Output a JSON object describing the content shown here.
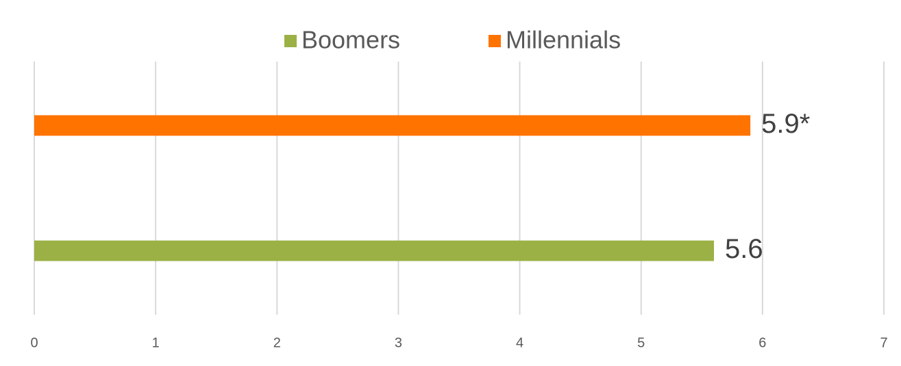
{
  "chart_data": {
    "type": "bar",
    "orientation": "horizontal",
    "categories": [
      null
    ],
    "series": [
      {
        "name": "Boomers",
        "color": "#9bb045",
        "values": [
          5.6
        ]
      },
      {
        "name": "Millennials",
        "color": "#ff7300",
        "values": [
          5.9
        ],
        "value_labels": [
          "5.9*"
        ]
      }
    ],
    "xlim": [
      0,
      7
    ],
    "xticks": [
      0,
      1,
      2,
      3,
      4,
      5,
      6,
      7
    ],
    "grid": true,
    "legend": "top"
  }
}
